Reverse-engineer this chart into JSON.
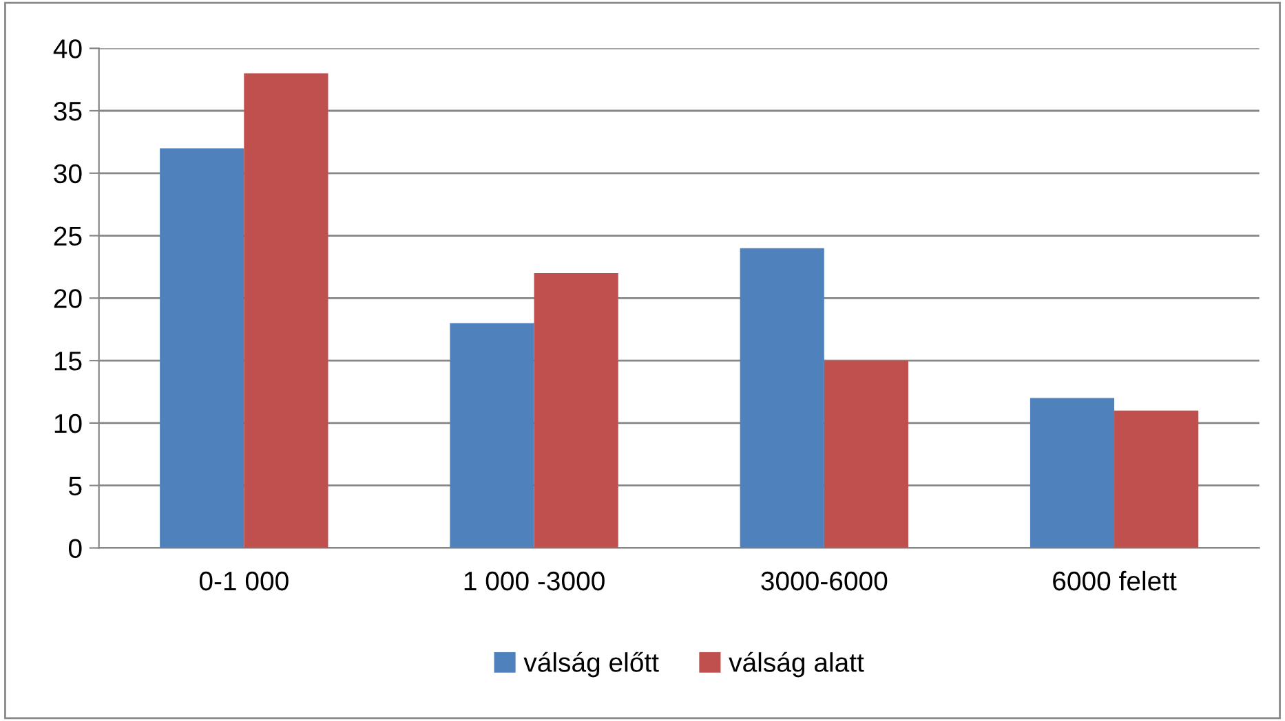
{
  "chart_data": {
    "type": "bar",
    "categories": [
      "0-1 000",
      "1 000 -3000",
      "3000-6000",
      "6000 felett"
    ],
    "series": [
      {
        "name": "válság előtt",
        "color": "#4f81bd",
        "values": [
          32,
          18,
          24,
          12
        ]
      },
      {
        "name": "válság alatt",
        "color": "#c0504d",
        "values": [
          38,
          22,
          15,
          11
        ]
      }
    ],
    "ylim": [
      0,
      40
    ],
    "yticks": [
      0,
      5,
      10,
      15,
      20,
      25,
      30,
      35,
      40
    ],
    "grid": "y",
    "legend": "bottom"
  }
}
